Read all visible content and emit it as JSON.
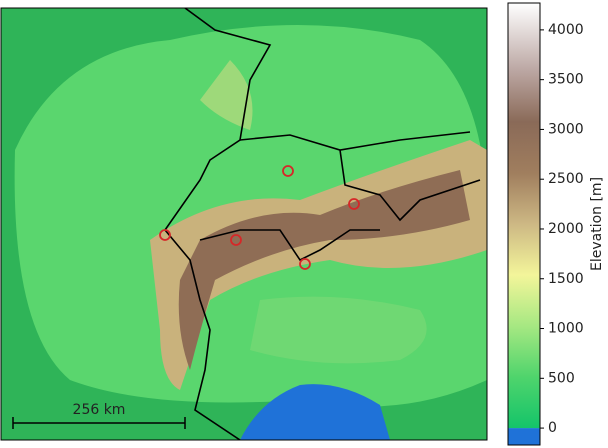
{
  "colorbar": {
    "label": "Elevation [m]",
    "lim": [
      -170,
      4270
    ],
    "ticks": [
      0,
      500,
      1000,
      1500,
      2000,
      2500,
      3000,
      3500,
      4000
    ]
  },
  "scale_bar": {
    "label": "256 km"
  }
}
